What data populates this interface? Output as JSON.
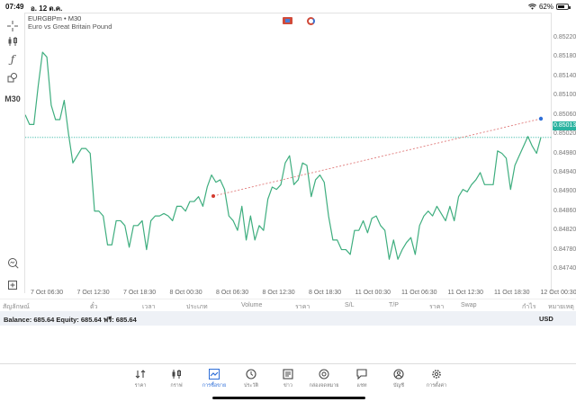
{
  "status_bar": {
    "time": "07:49",
    "date": "อ. 12 ต.ค.",
    "battery": "62%",
    "wifi_icon": "wifi-icon"
  },
  "chart": {
    "symbol": "EURGBPm",
    "timeframe": "M30",
    "symbol_line": "EURGBPm • M30",
    "description": "Euro vs Great Britain Pound",
    "current_price": "0.85013",
    "timeframe_label": "M30",
    "colors": {
      "line": "#3fae7f",
      "trendline": "#e07a7a",
      "price_line": "#2bb3a0",
      "price_tag_bg": "#2bb3a0",
      "start_marker": "#d33b2f",
      "end_marker": "#2f6fd8"
    }
  },
  "chart_data": {
    "type": "line",
    "title": "EURGBPm • M30",
    "subtitle": "Euro vs Great Britain Pound",
    "xlabel": "",
    "ylabel": "",
    "x_ticks": [
      "7 Oct 06:30",
      "7 Oct 12:30",
      "7 Oct 18:30",
      "8 Oct 00:30",
      "8 Oct 06:30",
      "8 Oct 12:30",
      "8 Oct 18:30",
      "11 Oct 00:30",
      "11 Oct 06:30",
      "11 Oct 12:30",
      "11 Oct 18:30",
      "12 Oct 00:30"
    ],
    "y_ticks": [
      "0.85220",
      "0.85180",
      "0.85140",
      "0.85100",
      "0.85060",
      "0.85020",
      "0.84980",
      "0.84940",
      "0.84900",
      "0.84860",
      "0.84820",
      "0.84780",
      "0.84740"
    ],
    "ylim": [
      0.8472,
      0.8524
    ],
    "current_price": 0.85013,
    "series": [
      {
        "name": "EURGBPm close",
        "values": [
          0.8506,
          0.8504,
          0.8504,
          0.8512,
          0.8519,
          0.8518,
          0.8508,
          0.8505,
          0.8505,
          0.8509,
          0.8502,
          0.8496,
          0.84975,
          0.8499,
          0.8499,
          0.8498,
          0.8486,
          0.8486,
          0.8485,
          0.8479,
          0.8479,
          0.8484,
          0.8484,
          0.8483,
          0.84785,
          0.8483,
          0.8483,
          0.8484,
          0.8478,
          0.8484,
          0.8485,
          0.8485,
          0.84855,
          0.8485,
          0.8484,
          0.8487,
          0.8487,
          0.8486,
          0.8488,
          0.8488,
          0.8489,
          0.8487,
          0.8491,
          0.84935,
          0.8492,
          0.84925,
          0.84905,
          0.8485,
          0.8484,
          0.8482,
          0.8487,
          0.848,
          0.8485,
          0.848,
          0.8483,
          0.8482,
          0.84885,
          0.8491,
          0.84905,
          0.84915,
          0.8496,
          0.84975,
          0.84915,
          0.84925,
          0.8496,
          0.84955,
          0.8489,
          0.84925,
          0.84935,
          0.8492,
          0.8485,
          0.848,
          0.848,
          0.8478,
          0.8478,
          0.8477,
          0.8482,
          0.8482,
          0.8484,
          0.84815,
          0.84845,
          0.8485,
          0.8483,
          0.8482,
          0.8476,
          0.848,
          0.8476,
          0.8478,
          0.84795,
          0.84805,
          0.8477,
          0.8483,
          0.8485,
          0.8486,
          0.8485,
          0.8487,
          0.84855,
          0.8484,
          0.8487,
          0.8484,
          0.8489,
          0.84905,
          0.849,
          0.84915,
          0.84925,
          0.8494,
          0.84915,
          0.84915,
          0.84915,
          0.84985,
          0.8498,
          0.8497,
          0.84905,
          0.84955,
          0.84975,
          0.84995,
          0.85015,
          0.84995,
          0.8498,
          0.85013
        ]
      }
    ],
    "annotations": [
      {
        "type": "trendline",
        "from": {
          "x": "8 Oct 03:30",
          "y": 0.84872
        },
        "to": {
          "x": "12 Oct 00:00",
          "y": 0.85025
        },
        "style": "dashed",
        "color": "#e07a7a"
      },
      {
        "type": "hline",
        "y": 0.85013,
        "style": "dotted",
        "color": "#2bb3a0"
      }
    ],
    "grid": false,
    "legend": "none"
  },
  "left_toolbar": [
    {
      "name": "crosshair-icon",
      "glyph": "-|-"
    },
    {
      "name": "candlestick-icon",
      "glyph": "candles"
    },
    {
      "name": "function-icon",
      "glyph": "f"
    },
    {
      "name": "objects-icon",
      "glyph": "shapes"
    },
    {
      "name": "timeframe-label",
      "glyph": "M30"
    },
    {
      "name": "zoom-chart-icon",
      "glyph": "magnifier"
    },
    {
      "name": "new-order-icon",
      "glyph": "plus-doc"
    }
  ],
  "columns": [
    "สัญลักษณ์",
    "ตั๋ว",
    "เวลา",
    "ประเภท",
    "Volume",
    "ราคา",
    "S/L",
    "T/P",
    "ราคา",
    "Swap",
    "กำไร",
    "หมายเหตุ"
  ],
  "balance": {
    "text": "Balance: 685.64 Equity: 685.64 ฟรี: 685.64",
    "currency": "USD"
  },
  "tabs": [
    {
      "label": "ราคา",
      "icon": "quotes-icon",
      "active": false
    },
    {
      "label": "กราฟ",
      "icon": "chart-icon",
      "active": false
    },
    {
      "label": "การซื้อขาย",
      "icon": "trade-icon",
      "active": true
    },
    {
      "label": "ประวัติ",
      "icon": "history-icon",
      "active": false
    },
    {
      "label": "ข่าว",
      "icon": "news-icon",
      "active": false
    },
    {
      "label": "กล่องจดหมาย",
      "icon": "mailbox-icon",
      "active": false
    },
    {
      "label": "แชท",
      "icon": "chat-icon",
      "active": false
    },
    {
      "label": "บัญชี",
      "icon": "account-icon",
      "active": false
    },
    {
      "label": "การตั้งค่า",
      "icon": "settings-icon",
      "active": false
    }
  ]
}
